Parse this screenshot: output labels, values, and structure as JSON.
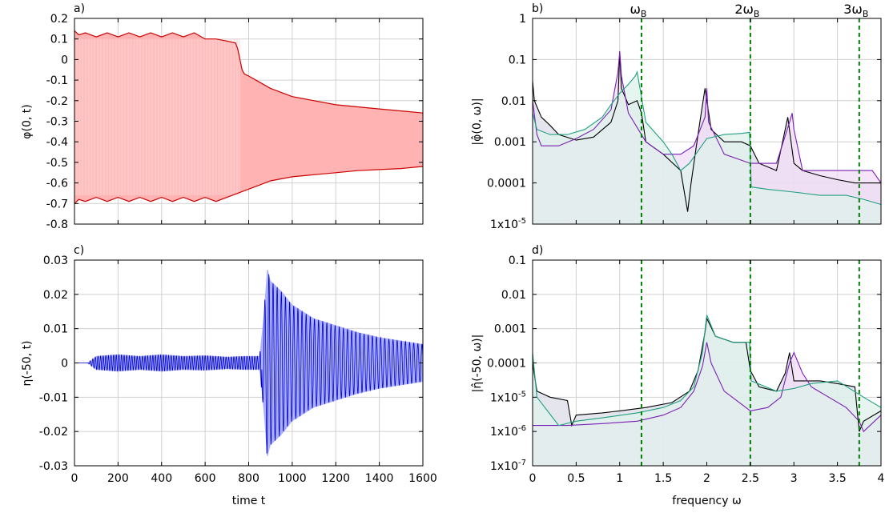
{
  "chart_data": [
    {
      "panel": "a)",
      "type": "line",
      "xlabel": "",
      "ylabel": "φ(0, t)",
      "xlim": [
        0,
        1600
      ],
      "ylim": [
        -0.8,
        0.2
      ],
      "xticks": [
        0,
        200,
        400,
        600,
        800,
        1000,
        1200,
        1400,
        1600
      ],
      "yticks": [
        0.2,
        0.1,
        0,
        -0.1,
        -0.2,
        -0.3,
        -0.4,
        -0.5,
        -0.6,
        -0.7,
        -0.8
      ],
      "ytick_labels": [
        "0.2",
        "0.1",
        "0",
        "-0.1",
        "-0.2",
        "-0.3",
        "-0.4",
        "-0.5",
        "-0.6",
        "-0.7",
        "-0.8"
      ],
      "grid": true,
      "fill_color": "#ffb3b3",
      "line_color": "#cc0000",
      "series": [
        {
          "kind": "upper_envelope",
          "x": [
            0,
            20,
            50,
            100,
            150,
            200,
            250,
            300,
            350,
            400,
            450,
            500,
            550,
            600,
            650,
            700,
            740,
            750,
            760,
            770,
            780,
            800,
            850,
            900,
            1000,
            1100,
            1200,
            1300,
            1400,
            1500,
            1600
          ],
          "y": [
            0.14,
            0.12,
            0.13,
            0.11,
            0.13,
            0.11,
            0.13,
            0.11,
            0.13,
            0.11,
            0.13,
            0.11,
            0.13,
            0.1,
            0.1,
            0.09,
            0.08,
            0.05,
            0.0,
            -0.05,
            -0.07,
            -0.08,
            -0.11,
            -0.14,
            -0.18,
            -0.2,
            -0.22,
            -0.23,
            -0.24,
            -0.25,
            -0.26
          ]
        },
        {
          "kind": "lower_envelope",
          "x": [
            0,
            20,
            50,
            100,
            150,
            200,
            250,
            300,
            350,
            400,
            450,
            500,
            550,
            600,
            650,
            700,
            750,
            800,
            850,
            900,
            1000,
            1100,
            1200,
            1300,
            1400,
            1500,
            1600
          ],
          "y": [
            -0.7,
            -0.68,
            -0.69,
            -0.67,
            -0.69,
            -0.67,
            -0.69,
            -0.67,
            -0.69,
            -0.67,
            -0.69,
            -0.67,
            -0.69,
            -0.67,
            -0.69,
            -0.67,
            -0.65,
            -0.63,
            -0.61,
            -0.59,
            -0.57,
            -0.56,
            -0.55,
            -0.54,
            -0.535,
            -0.53,
            -0.52
          ]
        }
      ]
    },
    {
      "panel": "b)",
      "type": "line",
      "xlabel": "",
      "ylabel": "|φ̂(0, ω)|",
      "xlim": [
        0,
        4
      ],
      "ylog": true,
      "ylim": [
        1e-05,
        1
      ],
      "xticks": [
        0,
        0.5,
        1,
        1.5,
        2,
        2.5,
        3,
        3.5,
        4
      ],
      "yticks": [
        1,
        0.1,
        0.01,
        0.001,
        0.0001,
        1e-05
      ],
      "ytick_labels": [
        "1",
        "0.1",
        "0.01",
        "0.001",
        "0.0001",
        "1x10-5"
      ],
      "vlines": [
        {
          "x": 1.25,
          "label": "ω",
          "sub": "B"
        },
        {
          "x": 2.5,
          "label": "2ω",
          "sub": "B"
        },
        {
          "x": 3.75,
          "label": "3ω",
          "sub": "B"
        }
      ],
      "vline_color": "#008000",
      "grid": true,
      "series": [
        {
          "color": "#000000",
          "x": [
            0,
            0.02,
            0.1,
            0.2,
            0.3,
            0.5,
            0.7,
            0.9,
            0.98,
            1.0,
            1.02,
            1.1,
            1.2,
            1.25,
            1.3,
            1.5,
            1.7,
            1.78,
            1.82,
            1.88,
            1.92,
            1.98,
            2.05,
            2.2,
            2.4,
            2.5,
            2.6,
            2.8,
            2.9,
            2.93,
            3.0,
            3.1,
            3.3,
            3.5,
            3.7,
            3.9,
            4.0
          ],
          "y": [
            0.03,
            0.01,
            0.004,
            0.0025,
            0.0015,
            0.0011,
            0.0013,
            0.003,
            0.01,
            0.15,
            0.02,
            0.008,
            0.01,
            0.005,
            0.001,
            0.0005,
            0.0002,
            2e-05,
            0.0001,
            0.0008,
            0.003,
            0.02,
            0.002,
            0.001,
            0.001,
            0.0008,
            0.0003,
            0.0002,
            0.002,
            0.004,
            0.0003,
            0.0002,
            0.00015,
            0.00012,
            0.0001,
            0.0001,
            0.0001
          ]
        },
        {
          "color": "#7a1fb3",
          "x": [
            0,
            0.05,
            0.1,
            0.3,
            0.5,
            0.7,
            0.9,
            0.98,
            1.0,
            1.02,
            1.1,
            1.3,
            1.5,
            1.7,
            1.85,
            1.98,
            2.0,
            2.02,
            2.2,
            2.5,
            2.8,
            2.95,
            2.98,
            3.0,
            3.1,
            3.3,
            3.6,
            3.9,
            4.0
          ],
          "y": [
            0.01,
            0.0015,
            0.0008,
            0.0008,
            0.0012,
            0.002,
            0.006,
            0.05,
            0.16,
            0.04,
            0.005,
            0.001,
            0.0005,
            0.0005,
            0.0008,
            0.004,
            0.02,
            0.003,
            0.0005,
            0.0003,
            0.0003,
            0.003,
            0.005,
            0.002,
            0.0002,
            0.0002,
            0.0002,
            0.0002,
            0.0001
          ]
        },
        {
          "color": "#20a080",
          "x": [
            0,
            0.05,
            0.2,
            0.4,
            0.6,
            0.8,
            0.9,
            1.0,
            1.1,
            1.18,
            1.2,
            1.3,
            1.5,
            1.6,
            1.7,
            1.8,
            2.0,
            2.2,
            2.4,
            2.49,
            2.51,
            2.7,
            3.0,
            3.3,
            3.6,
            3.8,
            4.0
          ],
          "y": [
            0.005,
            0.002,
            0.0015,
            0.0015,
            0.002,
            0.004,
            0.008,
            0.015,
            0.025,
            0.04,
            0.05,
            0.003,
            0.001,
            0.0005,
            0.0002,
            0.0003,
            0.0012,
            0.0015,
            0.0016,
            0.0017,
            8e-05,
            7e-05,
            6e-05,
            5e-05,
            5e-05,
            4e-05,
            3e-05
          ]
        }
      ]
    },
    {
      "panel": "c)",
      "type": "line",
      "xlabel": "time t",
      "ylabel": "η(-50, t)",
      "xlim": [
        0,
        1600
      ],
      "ylim": [
        -0.03,
        0.03
      ],
      "xticks": [
        0,
        200,
        400,
        600,
        800,
        1000,
        1200,
        1400,
        1600
      ],
      "xtick_labels": [
        "0",
        "200",
        "400",
        "600",
        "800",
        "1000",
        "1200",
        "1400",
        "1600"
      ],
      "yticks": [
        0.03,
        0.02,
        0.01,
        0,
        -0.01,
        -0.02,
        -0.03
      ],
      "ytick_labels": [
        "0.03",
        "0.02",
        "0.01",
        "0",
        "-0.01",
        "-0.02",
        "-0.03"
      ],
      "grid": true,
      "fill_color": "#aab0ff",
      "line_color": "#0000cc",
      "envelope": {
        "x": [
          0,
          60,
          80,
          100,
          200,
          300,
          400,
          500,
          600,
          700,
          780,
          820,
          850,
          870,
          885,
          900,
          950,
          1000,
          1100,
          1200,
          1300,
          1400,
          1500,
          1600
        ],
        "amp": [
          0,
          0,
          0.001,
          0.002,
          0.0025,
          0.002,
          0.0025,
          0.002,
          0.0022,
          0.0018,
          0.002,
          0.002,
          0.002,
          0.015,
          0.028,
          0.024,
          0.021,
          0.017,
          0.013,
          0.011,
          0.009,
          0.0075,
          0.0065,
          0.0055
        ]
      }
    },
    {
      "panel": "d)",
      "type": "line",
      "xlabel": "frequency ω",
      "ylabel": "|η̂(-50, ω)|",
      "xlim": [
        0,
        4
      ],
      "ylog": true,
      "ylim": [
        1e-07,
        0.1
      ],
      "xticks": [
        0,
        0.5,
        1,
        1.5,
        2,
        2.5,
        3,
        3.5,
        4
      ],
      "xtick_labels": [
        "0",
        "0.5",
        "1",
        "1.5",
        "2",
        "2.5",
        "3",
        "3.5",
        "4"
      ],
      "yticks": [
        0.1,
        0.01,
        0.001,
        0.0001,
        1e-05,
        1e-06,
        1e-07
      ],
      "ytick_labels": [
        "0.1",
        "0.01",
        "0.001",
        "0.0001",
        "1x10-5",
        "1x10-6",
        "1x10-7"
      ],
      "vlines": [
        {
          "x": 1.25
        },
        {
          "x": 2.5
        },
        {
          "x": 3.75
        }
      ],
      "vline_color": "#008000",
      "grid": true,
      "series": [
        {
          "color": "#000000",
          "x": [
            0,
            0.05,
            0.2,
            0.4,
            0.45,
            0.5,
            0.8,
            1.0,
            1.3,
            1.6,
            1.8,
            1.9,
            1.98,
            2.0,
            2.1,
            2.3,
            2.45,
            2.5,
            2.6,
            2.8,
            2.9,
            2.95,
            3.0,
            3.1,
            3.3,
            3.5,
            3.7,
            3.75,
            3.8,
            4.0
          ],
          "y": [
            0.0001,
            1.5e-05,
            1e-05,
            8e-06,
            1.5e-06,
            3e-06,
            3.5e-06,
            4e-06,
            5e-06,
            7e-06,
            1.5e-05,
            6e-05,
            0.0008,
            0.002,
            0.0006,
            0.0004,
            0.0004,
            6e-05,
            2e-05,
            1.5e-05,
            5e-05,
            0.0002,
            3e-05,
            3e-05,
            3e-05,
            2.5e-05,
            2e-05,
            1e-06,
            2e-06,
            4e-06
          ]
        },
        {
          "color": "#7a1fb3",
          "x": [
            0,
            0.4,
            0.8,
            1.2,
            1.5,
            1.7,
            1.85,
            1.95,
            2.0,
            2.05,
            2.2,
            2.5,
            2.7,
            2.85,
            2.95,
            3.0,
            3.1,
            3.2,
            3.4,
            3.6,
            3.75,
            3.8,
            4.0
          ],
          "y": [
            1.5e-06,
            1.5e-06,
            1.7e-06,
            2e-06,
            3e-06,
            5e-06,
            1.5e-05,
            8e-05,
            0.0004,
            0.0001,
            1.5e-05,
            4e-06,
            5e-06,
            1e-05,
            0.0001,
            0.0002,
            5e-05,
            2e-05,
            1e-05,
            5e-06,
            2e-06,
            1e-06,
            3e-06
          ]
        },
        {
          "color": "#20a080",
          "x": [
            0,
            0.05,
            0.3,
            0.5,
            0.8,
            1.2,
            1.5,
            1.7,
            1.85,
            1.95,
            2.0,
            2.1,
            2.3,
            2.49,
            2.51,
            2.8,
            3.0,
            3.2,
            3.5,
            3.8,
            4.0
          ],
          "y": [
            0.0002,
            1e-05,
            1.5e-06,
            2e-06,
            2.5e-06,
            3.5e-06,
            5e-06,
            8e-06,
            2e-05,
            0.0002,
            0.0025,
            0.0006,
            0.0004,
            0.0004,
            3e-05,
            1.5e-05,
            1.8e-05,
            2.5e-05,
            3e-05,
            1e-05,
            5e-06
          ]
        }
      ]
    }
  ]
}
